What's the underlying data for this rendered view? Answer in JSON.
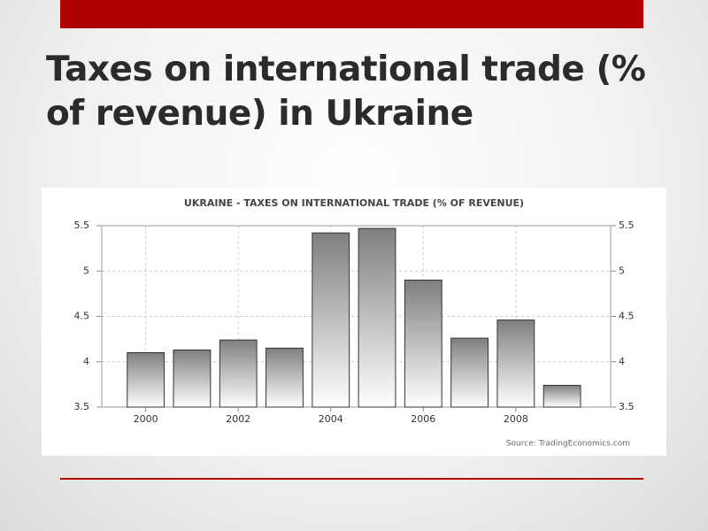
{
  "slide_title": "Taxes on international trade (% of revenue) in Ukraine",
  "chart_data": {
    "type": "bar",
    "title": "UKRAINE - TAXES ON INTERNATIONAL TRADE (% OF REVENUE)",
    "source": "Source: TradingEconomics.com",
    "categories": [
      "2000",
      null,
      "2002",
      null,
      "2004",
      null,
      "2006",
      null,
      "2008",
      null
    ],
    "values": [
      4.1,
      4.13,
      4.24,
      4.15,
      5.42,
      5.47,
      4.9,
      4.26,
      4.46,
      3.74
    ],
    "color": "#8a8a8a",
    "ylim": [
      3.5,
      5.5
    ],
    "yticks": [
      3.5,
      4,
      4.5,
      5,
      5.5
    ],
    "y2lim": [
      3.5,
      5.5
    ],
    "y2ticks": [
      3.5,
      4,
      4.5,
      5,
      5.5
    ],
    "grid": true
  }
}
